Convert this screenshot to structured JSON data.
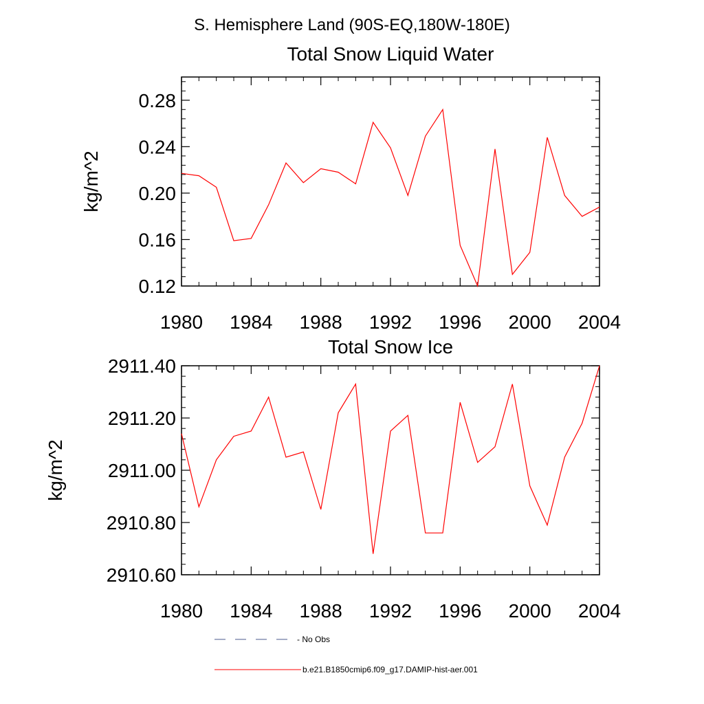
{
  "page_title": "S. Hemisphere Land (90S-EQ,180W-180E)",
  "colors": {
    "model_line": "#ff0000",
    "obs_line": "#4a5a8c",
    "axis": "#000000"
  },
  "chart_data": [
    {
      "type": "line",
      "title": "Total Snow Liquid Water",
      "ylabel": "kg/m^2",
      "xlabel": "",
      "xlim": [
        1980,
        2004
      ],
      "ylim": [
        0.12,
        0.3
      ],
      "xticks": [
        1980,
        1984,
        1988,
        1992,
        1996,
        2000,
        2004
      ],
      "xtick_labels": [
        "1980",
        "1984",
        "1988",
        "1992",
        "1996",
        "2000",
        "2004"
      ],
      "yticks": [
        0.12,
        0.16,
        0.2,
        0.24,
        0.28
      ],
      "ytick_labels": [
        "0.12",
        "0.16",
        "0.20",
        "0.24",
        "0.28"
      ],
      "grid": false,
      "series": [
        {
          "name": "b.e21.B1850cmip6.f09_g17.DAMIP-hist-aer.001",
          "color": "#ff0000",
          "x": [
            1980,
            1981,
            1982,
            1983,
            1984,
            1985,
            1986,
            1987,
            1988,
            1989,
            1990,
            1991,
            1992,
            1993,
            1994,
            1995,
            1996,
            1997,
            1998,
            1999,
            2000,
            2001,
            2002,
            2003,
            2004
          ],
          "values": [
            0.217,
            0.215,
            0.205,
            0.159,
            0.161,
            0.19,
            0.226,
            0.209,
            0.221,
            0.218,
            0.208,
            0.261,
            0.239,
            0.198,
            0.249,
            0.272,
            0.155,
            0.12,
            0.238,
            0.13,
            0.149,
            0.248,
            0.198,
            0.18,
            0.188
          ]
        }
      ]
    },
    {
      "type": "line",
      "title": "Total Snow Ice",
      "ylabel": "kg/m^2",
      "xlabel": "",
      "xlim": [
        1980,
        2004
      ],
      "ylim": [
        2910.6,
        2911.4
      ],
      "xticks": [
        1980,
        1984,
        1988,
        1992,
        1996,
        2000,
        2004
      ],
      "xtick_labels": [
        "1980",
        "1984",
        "1988",
        "1992",
        "1996",
        "2000",
        "2004"
      ],
      "yticks": [
        2910.6,
        2910.8,
        2911.0,
        2911.2,
        2911.4
      ],
      "ytick_labels": [
        "2910.60",
        "2910.80",
        "2911.00",
        "2911.20",
        "2911.40"
      ],
      "grid": false,
      "series": [
        {
          "name": "b.e21.B1850cmip6.f09_g17.DAMIP-hist-aer.001",
          "color": "#ff0000",
          "x": [
            1980,
            1981,
            1982,
            1983,
            1984,
            1985,
            1986,
            1987,
            1988,
            1989,
            1990,
            1991,
            1992,
            1993,
            1994,
            1995,
            1996,
            1997,
            1998,
            1999,
            2000,
            2001,
            2002,
            2003,
            2004
          ],
          "values": [
            2911.14,
            2910.86,
            2911.04,
            2911.13,
            2911.15,
            2911.28,
            2911.05,
            2911.07,
            2910.85,
            2911.22,
            2911.33,
            2910.68,
            2911.15,
            2911.21,
            2910.76,
            2910.76,
            2911.26,
            2911.03,
            2911.09,
            2911.33,
            2910.94,
            2910.79,
            2911.05,
            2911.18,
            2911.4
          ]
        }
      ]
    }
  ],
  "legend": {
    "position": "bottom",
    "items": [
      {
        "label": "No Obs",
        "style": "dashed",
        "color": "#4a5a8c"
      },
      {
        "label": "b.e21.B1850cmip6.f09_g17.DAMIP-hist-aer.001",
        "style": "solid",
        "color": "#ff0000"
      }
    ]
  }
}
